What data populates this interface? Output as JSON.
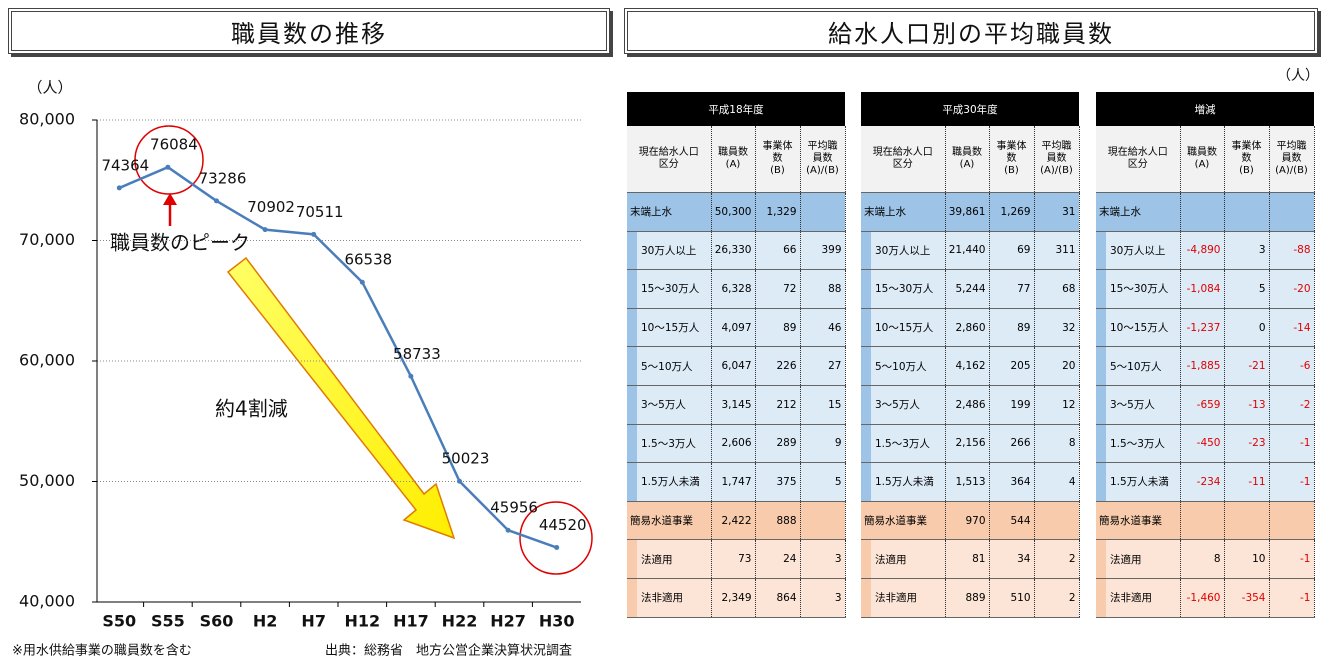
{
  "chart_data": {
    "type": "line",
    "title": "職員数の推移",
    "y_label": "（人）",
    "categories": [
      "S50",
      "S55",
      "S60",
      "H2",
      "H7",
      "H12",
      "H17",
      "H22",
      "H27",
      "H30"
    ],
    "values": [
      74364,
      76084,
      73286,
      70902,
      70511,
      66538,
      58733,
      50023,
      45956,
      44520
    ],
    "color": "#4a7ebb",
    "ylim": [
      40000,
      80000
    ],
    "yticks": [
      {
        "value": 40000,
        "label": "40,000"
      },
      {
        "value": 50000,
        "label": "50,000"
      },
      {
        "value": 60000,
        "label": "60,000"
      },
      {
        "value": 70000,
        "label": "70,000"
      },
      {
        "value": 80000,
        "label": "80,000"
      }
    ],
    "grid": true,
    "annotations": [
      "職員数のピーク",
      "約4割減"
    ],
    "notes": [
      "※用水供給事業の職員数を含む",
      "出典：総務省　地方公営企業決算状況調査"
    ]
  },
  "right_panel": {
    "title": "給水人口別の平均職員数",
    "unit": "（人）",
    "tables": [
      {
        "title": "平成18年度",
        "columns": [
          "現在給水人口\n区分",
          "職員数\n(A)",
          "事業体\n数\n(B)",
          "平均職\n員数\n(A)/(B)"
        ],
        "groups": [
          {
            "label": "末端上水",
            "values": [
              "50,300",
              "1,329",
              null
            ],
            "rows": [
              {
                "label": "30万人以上",
                "values": [
                  "26,330",
                  "66",
                  "399"
                ]
              },
              {
                "label": "15～30万人",
                "values": [
                  "6,328",
                  "72",
                  "88"
                ]
              },
              {
                "label": "10～15万人",
                "values": [
                  "4,097",
                  "89",
                  "46"
                ]
              },
              {
                "label": "5～10万人",
                "values": [
                  "6,047",
                  "226",
                  "27"
                ]
              },
              {
                "label": "3～5万人",
                "values": [
                  "3,145",
                  "212",
                  "15"
                ]
              },
              {
                "label": "1.5～3万人",
                "values": [
                  "2,606",
                  "289",
                  "9"
                ]
              },
              {
                "label": "1.5万人未満",
                "values": [
                  "1,747",
                  "375",
                  "5"
                ]
              }
            ]
          },
          {
            "label": "簡易水道事業",
            "values": [
              "2,422",
              "888",
              null
            ],
            "rows": [
              {
                "label": "法適用",
                "values": [
                  "73",
                  "24",
                  "3"
                ]
              },
              {
                "label": "法非適用",
                "values": [
                  "2,349",
                  "864",
                  "3"
                ]
              }
            ]
          }
        ]
      },
      {
        "title": "平成30年度",
        "columns": [
          "現在給水人口\n区分",
          "職員数\n(A)",
          "事業体\n数\n(B)",
          "平均職\n員数\n(A)/(B)"
        ],
        "groups": [
          {
            "label": "末端上水",
            "values": [
              "39,861",
              "1,269",
              "31"
            ],
            "rows": [
              {
                "label": "30万人以上",
                "values": [
                  "21,440",
                  "69",
                  "311"
                ]
              },
              {
                "label": "15～30万人",
                "values": [
                  "5,244",
                  "77",
                  "68"
                ]
              },
              {
                "label": "10～15万人",
                "values": [
                  "2,860",
                  "89",
                  "32"
                ]
              },
              {
                "label": "5～10万人",
                "values": [
                  "4,162",
                  "205",
                  "20"
                ]
              },
              {
                "label": "3～5万人",
                "values": [
                  "2,486",
                  "199",
                  "12"
                ]
              },
              {
                "label": "1.5～3万人",
                "values": [
                  "2,156",
                  "266",
                  "8"
                ]
              },
              {
                "label": "1.5万人未満",
                "values": [
                  "1,513",
                  "364",
                  "4"
                ]
              }
            ]
          },
          {
            "label": "簡易水道事業",
            "values": [
              "970",
              "544",
              null
            ],
            "rows": [
              {
                "label": "法適用",
                "values": [
                  "81",
                  "34",
                  "2"
                ]
              },
              {
                "label": "法非適用",
                "values": [
                  "889",
                  "510",
                  "2"
                ]
              }
            ]
          }
        ]
      },
      {
        "title": "増減",
        "columns": [
          "現在給水人口\n区分",
          "職員数\n(A)",
          "事業体\n数\n(B)",
          "平均職\n員数\n(A)/(B)"
        ],
        "groups": [
          {
            "label": "末端上水",
            "values": [
              null,
              null,
              null
            ],
            "rows": [
              {
                "label": "30万人以上",
                "values": [
                  "-4,890",
                  "3",
                  "-88"
                ]
              },
              {
                "label": "15～30万人",
                "values": [
                  "-1,084",
                  "5",
                  "-20"
                ]
              },
              {
                "label": "10～15万人",
                "values": [
                  "-1,237",
                  "0",
                  "-14"
                ]
              },
              {
                "label": "5～10万人",
                "values": [
                  "-1,885",
                  "-21",
                  "-6"
                ]
              },
              {
                "label": "3～5万人",
                "values": [
                  "-659",
                  "-13",
                  "-2"
                ]
              },
              {
                "label": "1.5～3万人",
                "values": [
                  "-450",
                  "-23",
                  "-1"
                ]
              },
              {
                "label": "1.5万人未満",
                "values": [
                  "-234",
                  "-11",
                  "-1"
                ]
              }
            ]
          },
          {
            "label": "簡易水道事業",
            "values": [
              null,
              null,
              null
            ],
            "rows": [
              {
                "label": "法適用",
                "values": [
                  "8",
                  "10",
                  "-1"
                ]
              },
              {
                "label": "法非適用",
                "values": [
                  "-1,460",
                  "-354",
                  "-1"
                ]
              }
            ]
          }
        ]
      }
    ]
  }
}
